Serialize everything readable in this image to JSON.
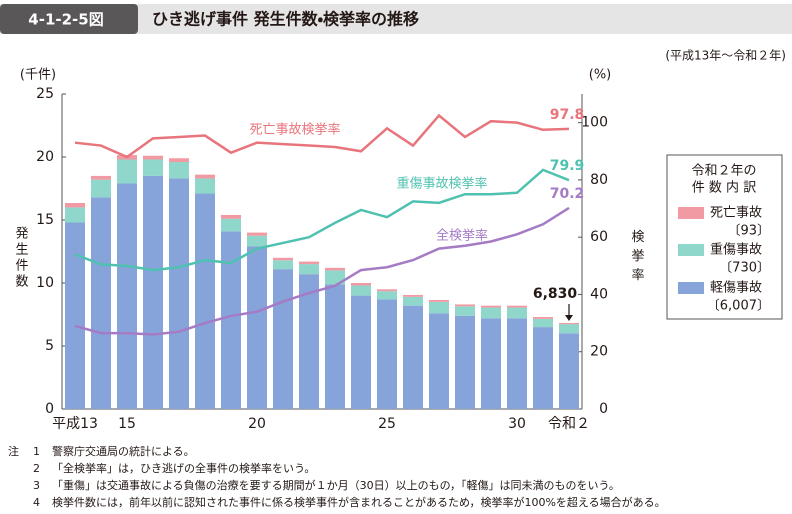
{
  "header": {
    "figure_no": "4-1-2-5図",
    "title": "ひき逃げ事件 発生件数・検挙率の推移"
  },
  "chart_data": {
    "type": "bar",
    "subtitle": "(平成13年～令和２年)",
    "y_unit": "(千件)",
    "y2_unit": "(%)",
    "ylabel": "発生件数",
    "y2label": "検挙率",
    "categories": [
      "平成13",
      null,
      "15",
      null,
      null,
      null,
      null,
      "20",
      null,
      null,
      null,
      null,
      "25",
      null,
      null,
      null,
      null,
      "30",
      null,
      "令和２"
    ],
    "ylim": [
      0,
      25
    ],
    "yticks": [
      0,
      5,
      10,
      15,
      20,
      25
    ],
    "y2lim": [
      0,
      110
    ],
    "y2ticks": [
      0,
      20,
      40,
      60,
      80,
      100
    ],
    "legend_title": [
      "令和２年の",
      "件 数 内 訳"
    ],
    "series": [
      {
        "name": "死亡事故",
        "type": "bar",
        "color": "#f29aa3",
        "legend_note": "〔93〕",
        "values": [
          0.35,
          0.3,
          0.35,
          0.3,
          0.3,
          0.3,
          0.3,
          0.25,
          0.2,
          0.2,
          0.2,
          0.2,
          0.15,
          0.15,
          0.15,
          0.15,
          0.15,
          0.15,
          0.15,
          0.093
        ]
      },
      {
        "name": "重傷事故",
        "type": "bar",
        "color": "#8fd6cb",
        "legend_note": "〔730〕",
        "values": [
          1.2,
          1.4,
          1.9,
          1.3,
          1.3,
          1.2,
          1.0,
          0.85,
          0.7,
          0.8,
          1.1,
          0.8,
          0.65,
          0.7,
          0.9,
          0.75,
          0.85,
          0.85,
          0.65,
          0.73
        ]
      },
      {
        "name": "軽傷事故",
        "type": "bar",
        "color": "#86a4da",
        "legend_note": "〔6,007〕",
        "values": [
          14.8,
          16.8,
          17.9,
          18.5,
          18.3,
          17.1,
          14.1,
          12.9,
          11.1,
          10.7,
          9.9,
          9.0,
          8.7,
          8.2,
          7.6,
          7.4,
          7.2,
          7.2,
          6.5,
          6.007
        ]
      },
      {
        "name": "死亡事故検挙率",
        "type": "line",
        "axis": "y2",
        "color": "#e8747c",
        "values": [
          93,
          92,
          88,
          94.5,
          95,
          95.5,
          89.5,
          93,
          92.5,
          92,
          91.5,
          90,
          98,
          92,
          102.5,
          95,
          100.5,
          100,
          97.5,
          97.8
        ]
      },
      {
        "name": "重傷事故検挙率",
        "type": "line",
        "axis": "y2",
        "color": "#4fc1b0",
        "values": [
          54,
          50.5,
          50,
          48.5,
          49.5,
          52,
          51,
          56,
          58,
          60,
          65,
          69.5,
          67,
          72.5,
          72,
          75,
          75,
          75.5,
          83.5,
          79.9
        ]
      },
      {
        "name": "全検挙率",
        "type": "line",
        "axis": "y2",
        "color": "#a47bc4",
        "values": [
          29,
          26.5,
          26.5,
          26,
          27,
          30,
          32.5,
          34,
          37.5,
          40.5,
          43,
          48.5,
          49.5,
          52,
          56,
          57,
          58.5,
          61,
          64.5,
          70.2
        ]
      }
    ],
    "total_annotation": {
      "label": "6,830",
      "value": 6.83
    }
  },
  "notes": {
    "label": "注",
    "items": [
      {
        "number": "1",
        "text": "警察庁交通局の統計による。"
      },
      {
        "number": "2",
        "text": "「全検挙率」は，ひき逃げの全事件の検挙率をいう。"
      },
      {
        "number": "3",
        "text": "「重傷」は交通事故による負傷の治療を要する期間が１か月（30日）以上のもの，「軽傷」は同未満のものをいう。"
      },
      {
        "number": "4",
        "text": "検挙件数には，前年以前に認知された事件に係る検挙事件が含まれることがあるため，検挙率が100%を超える場合がある。"
      }
    ]
  }
}
